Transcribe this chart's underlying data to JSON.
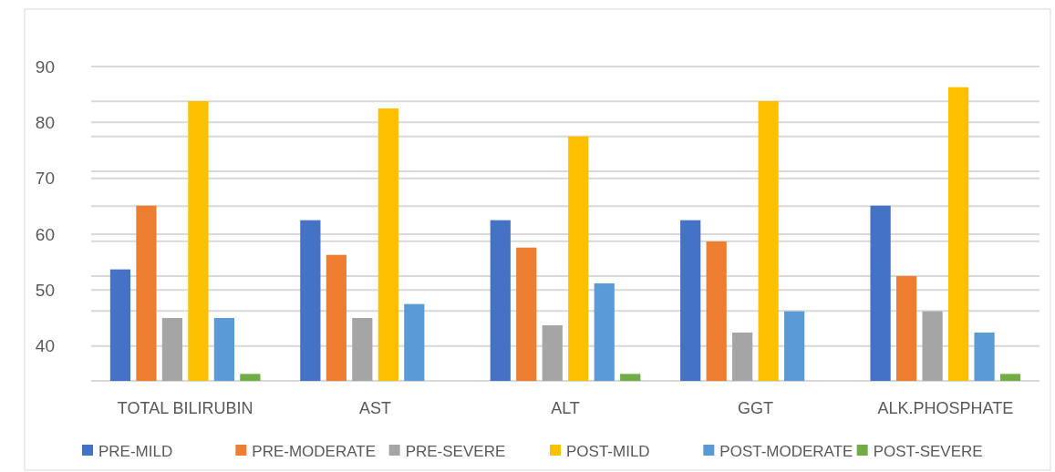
{
  "chart_data": {
    "type": "bar",
    "categories": [
      "TOTAL BILIRUBIN",
      "AST",
      "ALT",
      "GGT",
      "ALK.PHOSPHATE"
    ],
    "series": [
      {
        "name": "PRE-MILD",
        "color": "#4472c4",
        "values": [
          53.7,
          62.5,
          62.5,
          62.5,
          65.1
        ]
      },
      {
        "name": "PRE-MODERATE",
        "color": "#ed7d31",
        "values": [
          65.1,
          56.3,
          57.6,
          58.7,
          52.5
        ]
      },
      {
        "name": "PRE-SEVERE",
        "color": "#a5a5a5",
        "values": [
          45,
          45,
          43.7,
          42.4,
          46.2
        ]
      },
      {
        "name": "POST-MILD",
        "color": "#ffc000",
        "values": [
          83.8,
          82.5,
          77.5,
          83.8,
          86.3
        ]
      },
      {
        "name": "POST-MODERATE",
        "color": "#5b9bd5",
        "values": [
          45,
          47.5,
          51.2,
          46.2,
          42.4
        ]
      },
      {
        "name": "POST-SEVERE",
        "color": "#70ad47",
        "values": [
          35,
          null,
          35,
          null,
          35
        ]
      }
    ],
    "ylim": [
      33.75,
      90
    ],
    "yticks": [
      40,
      {
        "value": 46.25,
        "label": null
      },
      50,
      {
        "value": 52.5,
        "label": null
      },
      {
        "value": 58.75,
        "label": null
      },
      60,
      {
        "value": 65,
        "label": null
      },
      70,
      {
        "value": 71.25,
        "label": null
      },
      {
        "value": 77.5,
        "label": null
      },
      80,
      {
        "value": 83.75,
        "label": null
      },
      90
    ],
    "grid": "y",
    "legend": "bottom"
  }
}
